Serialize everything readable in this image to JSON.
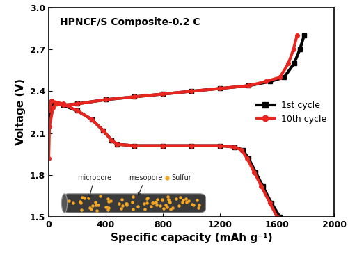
{
  "chart_data": {
    "type": "line",
    "title": "HPNCF/S Composite-0.2 C",
    "x_label": "Specific capacity (mAh g⁻¹)",
    "y_label": "Voltage (V)",
    "xlim": [
      0,
      2000
    ],
    "xticks": [
      0,
      400,
      800,
      1200,
      1600,
      2000
    ],
    "ylim": [
      1.5,
      3.0
    ],
    "yticks": [
      {
        "value": 1.5,
        "label": "1.5"
      },
      {
        "value": 1.8,
        "label": "1.8"
      },
      {
        "value": 2.1,
        "label": "2.1"
      },
      {
        "value": 2.4,
        "label": "2.4"
      },
      {
        "value": 2.7,
        "label": "2.7"
      },
      {
        "value": 3.0,
        "label": "3.0"
      }
    ],
    "legend": "center right",
    "grid": false,
    "annotations": [
      "micropore",
      "mesopore",
      "Sulfur"
    ],
    "series": [
      {
        "name": "1st cycle",
        "color": "#000000",
        "marker": "s",
        "line_style": "solid",
        "x": [
          0,
          20,
          100,
          200,
          300,
          380,
          440,
          480,
          600,
          800,
          1000,
          1200,
          1300,
          1360,
          1400,
          1450,
          1500,
          1560,
          1620,
          null,
          0,
          5,
          20,
          50,
          100,
          200,
          400,
          600,
          800,
          1000,
          1200,
          1400,
          1550,
          1650,
          1720,
          1760,
          1790
        ],
        "values": [
          2.24,
          2.32,
          2.3,
          2.26,
          2.2,
          2.12,
          2.05,
          2.02,
          2.01,
          2.01,
          2.01,
          2.01,
          2.0,
          1.98,
          1.92,
          1.82,
          1.72,
          1.6,
          1.5,
          null,
          2.2,
          2.24,
          2.28,
          2.31,
          2.3,
          2.31,
          2.34,
          2.36,
          2.38,
          2.4,
          2.42,
          2.44,
          2.47,
          2.5,
          2.6,
          2.7,
          2.8
        ]
      },
      {
        "name": "10th cycle",
        "color": "#e8251f",
        "marker": "o",
        "line_style": "solid",
        "x": [
          0,
          20,
          100,
          200,
          300,
          380,
          440,
          480,
          600,
          800,
          1000,
          1200,
          1300,
          1350,
          1390,
          1440,
          1490,
          1550,
          1600,
          null,
          0,
          5,
          30,
          50,
          100,
          200,
          400,
          600,
          800,
          1000,
          1200,
          1400,
          1520,
          1620,
          1680,
          1715,
          1740
        ],
        "values": [
          2.26,
          2.33,
          2.31,
          2.26,
          2.2,
          2.12,
          2.05,
          2.02,
          2.01,
          2.01,
          2.01,
          2.01,
          2.0,
          1.98,
          1.92,
          1.82,
          1.72,
          1.6,
          1.5,
          null,
          1.92,
          2.15,
          2.28,
          2.31,
          2.3,
          2.31,
          2.34,
          2.36,
          2.38,
          2.4,
          2.42,
          2.44,
          2.47,
          2.5,
          2.6,
          2.7,
          2.8
        ]
      }
    ]
  }
}
